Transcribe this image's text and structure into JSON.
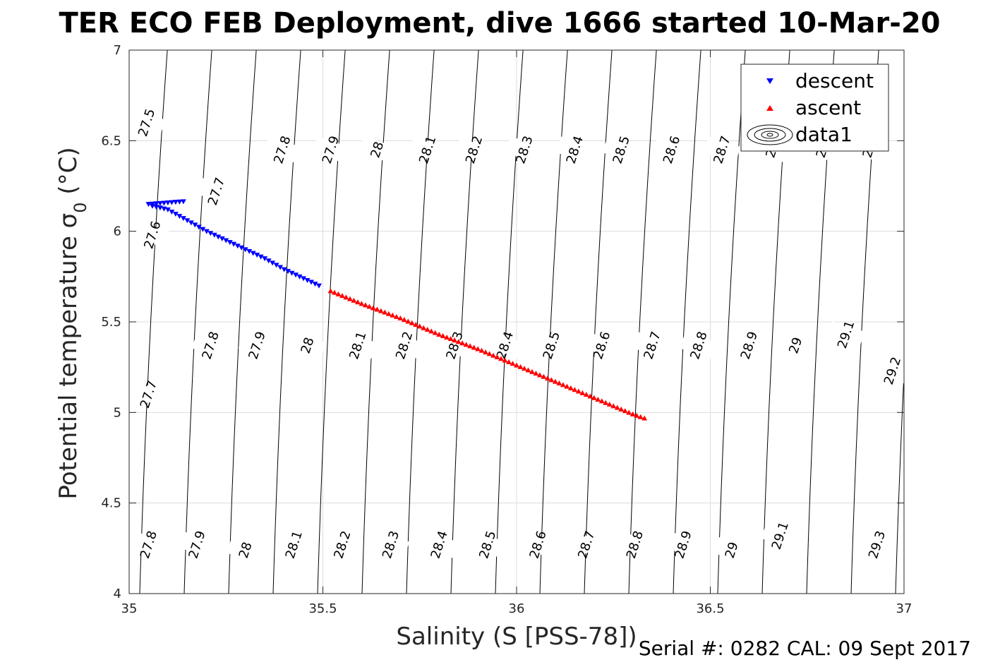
{
  "footer": "Serial #: 0282  CAL: 09 Sept 2017",
  "colors": {
    "descent": "#0000ff",
    "ascent": "#ff0000",
    "contour": "#000000",
    "grid": "#dcdcdc"
  },
  "chart_data": {
    "type": "scatter",
    "title": "TER ECO FEB Deployment, dive 1666 started 10-Mar-20",
    "xlabel": "Salinity (S [PSS-78])",
    "ylabel_main": "Potential temperature σ",
    "ylabel_sub": "0",
    "ylabel_unit": " (°C)",
    "xlim": [
      35,
      37
    ],
    "ylim": [
      4,
      7
    ],
    "xticks": [
      35,
      35.5,
      36,
      36.5,
      37
    ],
    "xtick_labels": [
      "35",
      "35.5",
      "36",
      "36.5",
      "37"
    ],
    "yticks": [
      4,
      4.5,
      5,
      5.5,
      6,
      6.5,
      7
    ],
    "ytick_labels": [
      "4",
      "4.5",
      "5",
      "5.5",
      "6",
      "6.5",
      "7"
    ],
    "grid": true,
    "legend_position": "top-right",
    "legend": [
      "descent",
      "ascent",
      "data1"
    ],
    "series": [
      {
        "name": "descent",
        "marker": "triangle-down",
        "color": "#0000ff",
        "points": [
          [
            35.14,
            6.165
          ],
          [
            35.11,
            6.16
          ],
          [
            35.08,
            6.155
          ],
          [
            35.05,
            6.15
          ],
          [
            35.06,
            6.14
          ],
          [
            35.1,
            6.12
          ],
          [
            35.15,
            6.06
          ],
          [
            35.2,
            6.0
          ],
          [
            35.25,
            5.95
          ],
          [
            35.3,
            5.9
          ],
          [
            35.35,
            5.85
          ],
          [
            35.4,
            5.79
          ],
          [
            35.45,
            5.74
          ],
          [
            35.5,
            5.69
          ]
        ]
      },
      {
        "name": "ascent",
        "marker": "triangle-up",
        "color": "#ff0000",
        "points": [
          [
            35.52,
            5.67
          ],
          [
            35.6,
            5.6
          ],
          [
            35.7,
            5.52
          ],
          [
            35.8,
            5.43
          ],
          [
            35.9,
            5.35
          ],
          [
            36.0,
            5.26
          ],
          [
            36.1,
            5.17
          ],
          [
            36.2,
            5.08
          ],
          [
            36.3,
            4.99
          ],
          [
            36.34,
            4.96
          ]
        ]
      }
    ],
    "contours": {
      "label": "data1",
      "levels": [
        "27.5",
        "27.6",
        "27.7",
        "27.8",
        "27.9",
        "28",
        "28.1",
        "28.2",
        "28.3",
        "28.4",
        "28.5",
        "28.6",
        "28.7",
        "28.8",
        "28.9",
        "29",
        "29.1",
        "29.2",
        "29.3"
      ],
      "labels_top": [
        {
          "t": "27.5",
          "s": 35.045,
          "T": 6.6
        },
        {
          "t": "27.8",
          "s": 35.395,
          "T": 6.45
        },
        {
          "t": "27.9",
          "s": 35.52,
          "T": 6.45
        },
        {
          "t": "28",
          "s": 35.64,
          "T": 6.45
        },
        {
          "t": "28.1",
          "s": 35.77,
          "T": 6.45
        },
        {
          "t": "28.2",
          "s": 35.89,
          "T": 6.45
        },
        {
          "t": "28.3",
          "s": 36.02,
          "T": 6.45
        },
        {
          "t": "28.4",
          "s": 36.15,
          "T": 6.45
        },
        {
          "t": "28.5",
          "s": 36.27,
          "T": 6.45
        },
        {
          "t": "28.6",
          "s": 36.4,
          "T": 6.45
        },
        {
          "t": "28.7",
          "s": 36.53,
          "T": 6.45
        },
        {
          "t": "29",
          "s": 36.66,
          "T": 6.45
        },
        {
          "t": "29",
          "s": 36.79,
          "T": 6.45
        },
        {
          "t": "29",
          "s": 36.91,
          "T": 6.45
        }
      ],
      "labels_upper": [
        {
          "t": "27.7",
          "s": 35.225,
          "T": 6.22
        },
        {
          "t": "27.6",
          "s": 35.06,
          "T": 5.98
        }
      ],
      "labels_mid": [
        {
          "t": "27.7",
          "s": 35.05,
          "T": 5.1
        },
        {
          "t": "27.8",
          "s": 35.21,
          "T": 5.37
        },
        {
          "t": "27.9",
          "s": 35.33,
          "T": 5.37
        },
        {
          "t": "28",
          "s": 35.46,
          "T": 5.37
        },
        {
          "t": "28.1",
          "s": 35.59,
          "T": 5.37
        },
        {
          "t": "28.2",
          "s": 35.71,
          "T": 5.37
        },
        {
          "t": "28.3",
          "s": 35.84,
          "T": 5.37
        },
        {
          "t": "28.4",
          "s": 35.97,
          "T": 5.37
        },
        {
          "t": "28.5",
          "s": 36.09,
          "T": 5.37
        },
        {
          "t": "28.6",
          "s": 36.22,
          "T": 5.37
        },
        {
          "t": "28.7",
          "s": 36.35,
          "T": 5.37
        },
        {
          "t": "28.8",
          "s": 36.47,
          "T": 5.37
        },
        {
          "t": "28.9",
          "s": 36.6,
          "T": 5.37
        },
        {
          "t": "29",
          "s": 36.72,
          "T": 5.37
        },
        {
          "t": "29.1",
          "s": 36.85,
          "T": 5.43
        },
        {
          "t": "29.2",
          "s": 36.97,
          "T": 5.23
        }
      ],
      "labels_bottom": [
        {
          "t": "27.8",
          "s": 35.05,
          "T": 4.27
        },
        {
          "t": "27.9",
          "s": 35.175,
          "T": 4.27
        },
        {
          "t": "28",
          "s": 35.3,
          "T": 4.24
        },
        {
          "t": "28.1",
          "s": 35.425,
          "T": 4.27
        },
        {
          "t": "28.2",
          "s": 35.55,
          "T": 4.27
        },
        {
          "t": "28.3",
          "s": 35.675,
          "T": 4.27
        },
        {
          "t": "28.4",
          "s": 35.8,
          "T": 4.27
        },
        {
          "t": "28.5",
          "s": 35.925,
          "T": 4.27
        },
        {
          "t": "28.6",
          "s": 36.055,
          "T": 4.27
        },
        {
          "t": "28.7",
          "s": 36.18,
          "T": 4.27
        },
        {
          "t": "28.8",
          "s": 36.305,
          "T": 4.27
        },
        {
          "t": "28.9",
          "s": 36.43,
          "T": 4.27
        },
        {
          "t": "29",
          "s": 36.555,
          "T": 4.24
        },
        {
          "t": "29.1",
          "s": 36.68,
          "T": 4.32
        },
        {
          "t": "29.3",
          "s": 36.93,
          "T": 4.27
        }
      ]
    }
  }
}
